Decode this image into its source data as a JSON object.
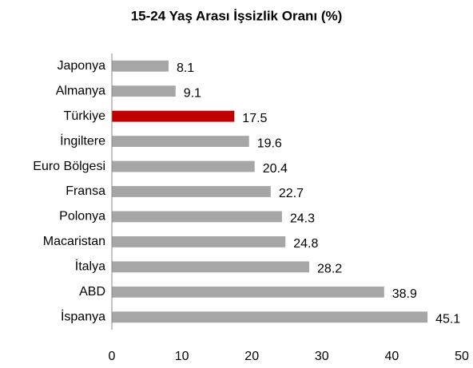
{
  "chart_data": {
    "type": "bar",
    "orientation": "horizontal",
    "title": "15-24 Yaş Arası İşsizlik Oranı (%)",
    "categories": [
      "Japonya",
      "Almanya",
      "Türkiye",
      "İngiltere",
      "Euro Bölgesi",
      "Fransa",
      "Polonya",
      "Macaristan",
      "İtalya",
      "ABD",
      "İspanya"
    ],
    "values": [
      8.1,
      9.1,
      17.5,
      19.6,
      20.4,
      22.7,
      24.3,
      24.8,
      28.2,
      38.9,
      45.1
    ],
    "colors": [
      "#a6a6a6",
      "#a6a6a6",
      "#c00000",
      "#a6a6a6",
      "#a6a6a6",
      "#a6a6a6",
      "#a6a6a6",
      "#a6a6a6",
      "#a6a6a6",
      "#a6a6a6",
      "#a6a6a6"
    ],
    "xlim": [
      0,
      50
    ],
    "xticks": [
      0,
      10,
      20,
      30,
      40,
      50
    ],
    "grid": false
  }
}
